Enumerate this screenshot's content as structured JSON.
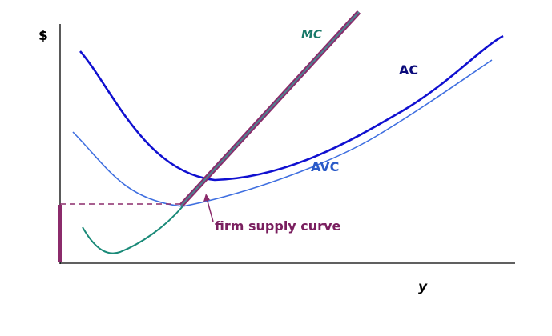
{
  "labels": {
    "y_axis": "$",
    "x_axis": "y",
    "mc": "MC",
    "ac": "AC",
    "avc": "AVC",
    "supply": "firm supply curve"
  },
  "colors": {
    "axis": "#000000",
    "ac": "#1010d0",
    "avc": "#3f6fe0",
    "mc": "#1a8a78",
    "supply": "#8b2b6b",
    "supply_core": "#4f7f8f",
    "mc_label": "#1a7a6a",
    "ac_label": "#0a0a7a",
    "avc_label": "#2a5ac8",
    "supply_label": "#7a1f5f"
  }
}
